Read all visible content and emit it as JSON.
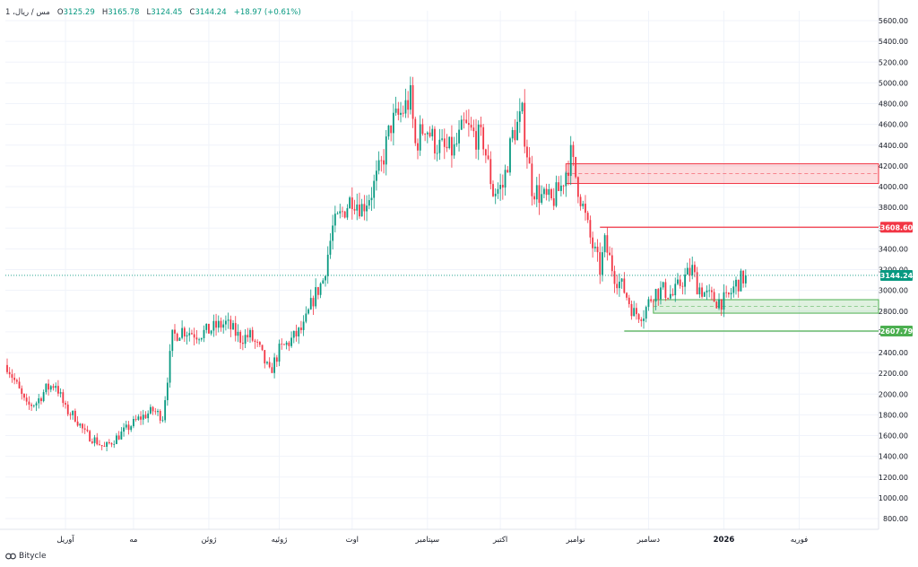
{
  "header": {
    "symbol": "1 ،مس / ریال",
    "o_label": "O",
    "o_value": "3125.29",
    "h_label": "H",
    "h_value": "3165.78",
    "l_label": "L",
    "l_value": "3124.45",
    "c_label": "C",
    "c_value": "3144.24",
    "change": "+18.97 (+0.61%)"
  },
  "brand": {
    "name": "Bitycle",
    "logo_icon": "bitycle-logo-icon"
  },
  "colors": {
    "up": "#089981",
    "down": "#f23645",
    "grid": "#f0f3fa",
    "text": "#131722",
    "resistance": "#f23645",
    "support": "#4caf50"
  },
  "chart_data": {
    "type": "candlestick",
    "y_ticks": [
      "5600.00",
      "5400.00",
      "5200.00",
      "5000.00",
      "4800.00",
      "4600.00",
      "4400.00",
      "4200.00",
      "4000.00",
      "3800.00",
      "3600.00",
      "3400.00",
      "3200.00",
      "3000.00",
      "2800.00",
      "2600.00",
      "2400.00",
      "2200.00",
      "2000.00",
      "1800.00",
      "1600.00",
      "1400.00",
      "1200.00",
      "1000.00",
      "800.00"
    ],
    "ylim": [
      700,
      5700
    ],
    "x_ticks": [
      {
        "label": "آوریل",
        "idx": 24
      },
      {
        "label": "مه",
        "idx": 52
      },
      {
        "label": "ژوئن",
        "idx": 83
      },
      {
        "label": "ژوئیه",
        "idx": 112
      },
      {
        "label": "اوت",
        "idx": 142
      },
      {
        "label": "سپتامبر",
        "idx": 173
      },
      {
        "label": "اکتبر",
        "idx": 203
      },
      {
        "label": "نوامبر",
        "idx": 234
      },
      {
        "label": "دسامبر",
        "idx": 264
      },
      {
        "label": "2026",
        "idx": 295,
        "bold": true
      },
      {
        "label": "فوریه",
        "idx": 326
      }
    ],
    "last_price": {
      "value": 3144.24,
      "label": "3144.24"
    },
    "levels": [
      {
        "value": 3608.6,
        "label": "3608.60",
        "kind": "resistance",
        "from_idx": 244
      },
      {
        "value": 2607.79,
        "label": "2607.79",
        "kind": "support",
        "from_idx": 254
      }
    ],
    "zones": [
      {
        "kind": "resistance",
        "top": 4220,
        "bottom": 4030,
        "from_idx": 230
      },
      {
        "kind": "support",
        "top": 2910,
        "bottom": 2780,
        "from_idx": 266
      }
    ],
    "path_points": [
      [
        0,
        2280
      ],
      [
        8,
        1880
      ],
      [
        12,
        1920
      ],
      [
        16,
        2050
      ],
      [
        20,
        2100
      ],
      [
        24,
        1850
      ],
      [
        28,
        1780
      ],
      [
        32,
        1620
      ],
      [
        36,
        1560
      ],
      [
        40,
        1480
      ],
      [
        44,
        1560
      ],
      [
        48,
        1640
      ],
      [
        54,
        1760
      ],
      [
        60,
        1840
      ],
      [
        64,
        1780
      ],
      [
        68,
        2550
      ],
      [
        72,
        2620
      ],
      [
        78,
        2580
      ],
      [
        82,
        2600
      ],
      [
        86,
        2650
      ],
      [
        90,
        2680
      ],
      [
        96,
        2540
      ],
      [
        100,
        2560
      ],
      [
        104,
        2420
      ],
      [
        108,
        2200
      ],
      [
        112,
        2420
      ],
      [
        116,
        2500
      ],
      [
        122,
        2640
      ],
      [
        126,
        2920
      ],
      [
        130,
        3100
      ],
      [
        134,
        3600
      ],
      [
        138,
        3750
      ],
      [
        142,
        3900
      ],
      [
        146,
        3800
      ],
      [
        150,
        3950
      ],
      [
        154,
        4200
      ],
      [
        158,
        4600
      ],
      [
        162,
        4700
      ],
      [
        166,
        4850
      ],
      [
        168,
        4400
      ],
      [
        172,
        4600
      ],
      [
        176,
        4420
      ],
      [
        180,
        4350
      ],
      [
        184,
        4350
      ],
      [
        188,
        4580
      ],
      [
        192,
        4500
      ],
      [
        196,
        4440
      ],
      [
        200,
        3950
      ],
      [
        204,
        4000
      ],
      [
        208,
        4500
      ],
      [
        212,
        4680
      ],
      [
        216,
        4000
      ],
      [
        220,
        3900
      ],
      [
        224,
        3850
      ],
      [
        228,
        4000
      ],
      [
        232,
        4300
      ],
      [
        236,
        3900
      ],
      [
        240,
        3500
      ],
      [
        244,
        3200
      ],
      [
        246,
        3450
      ],
      [
        250,
        3150
      ],
      [
        254,
        3000
      ],
      [
        258,
        2780
      ],
      [
        262,
        2780
      ],
      [
        266,
        2980
      ],
      [
        270,
        3000
      ],
      [
        274,
        2950
      ],
      [
        278,
        3100
      ],
      [
        282,
        3200
      ],
      [
        284,
        3050
      ],
      [
        288,
        2950
      ],
      [
        292,
        2900
      ],
      [
        296,
        2900
      ],
      [
        300,
        3060
      ],
      [
        304,
        3140
      ]
    ],
    "n_candles": 305,
    "seed": 7
  }
}
